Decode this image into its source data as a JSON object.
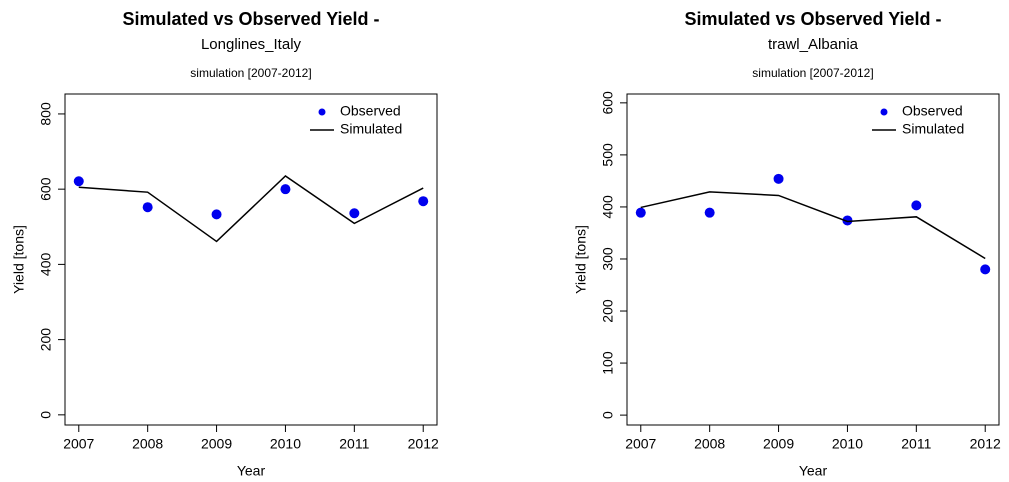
{
  "chart_data": [
    {
      "type": "line",
      "title": "Simulated vs Observed Yield -",
      "subtitle": "Longlines_Italy",
      "note": "simulation [2007-2012]",
      "x_label": "Year",
      "y_label": "Yield [tons]",
      "x": [
        2007,
        2008,
        2009,
        2010,
        2011,
        2012
      ],
      "series": [
        {
          "name": "Observed",
          "color": "#0000ee",
          "mode": "markers",
          "values": [
            621,
            552,
            533,
            600,
            536,
            568
          ]
        },
        {
          "name": "Simulated",
          "color": "#000000",
          "mode": "lines",
          "values": [
            605,
            592,
            461,
            635,
            509,
            603
          ]
        }
      ],
      "xlim": [
        2006.8,
        2012.2
      ],
      "xticks": [
        2007,
        2008,
        2009,
        2010,
        2011,
        2012
      ],
      "ylim": [
        -27,
        853
      ],
      "yticks": [
        0,
        200,
        400,
        600,
        800
      ],
      "legend": "top-right"
    },
    {
      "type": "line",
      "title": "Simulated vs Observed Yield -",
      "subtitle": "trawl_Albania",
      "note": "simulation [2007-2012]",
      "x_label": "Year",
      "y_label": "Yield [tons]",
      "x": [
        2007,
        2008,
        2009,
        2010,
        2011,
        2012
      ],
      "series": [
        {
          "name": "Observed",
          "color": "#0000ee",
          "mode": "markers",
          "values": [
            389,
            389,
            454,
            374,
            403,
            280
          ]
        },
        {
          "name": "Simulated",
          "color": "#000000",
          "mode": "lines",
          "values": [
            399,
            429,
            422,
            372,
            381,
            301
          ]
        }
      ],
      "xlim": [
        2006.8,
        2012.2
      ],
      "xticks": [
        2007,
        2008,
        2009,
        2010,
        2011,
        2012
      ],
      "ylim": [
        -19,
        617
      ],
      "yticks": [
        0,
        100,
        200,
        300,
        400,
        500,
        600
      ],
      "legend": "top-right"
    }
  ]
}
